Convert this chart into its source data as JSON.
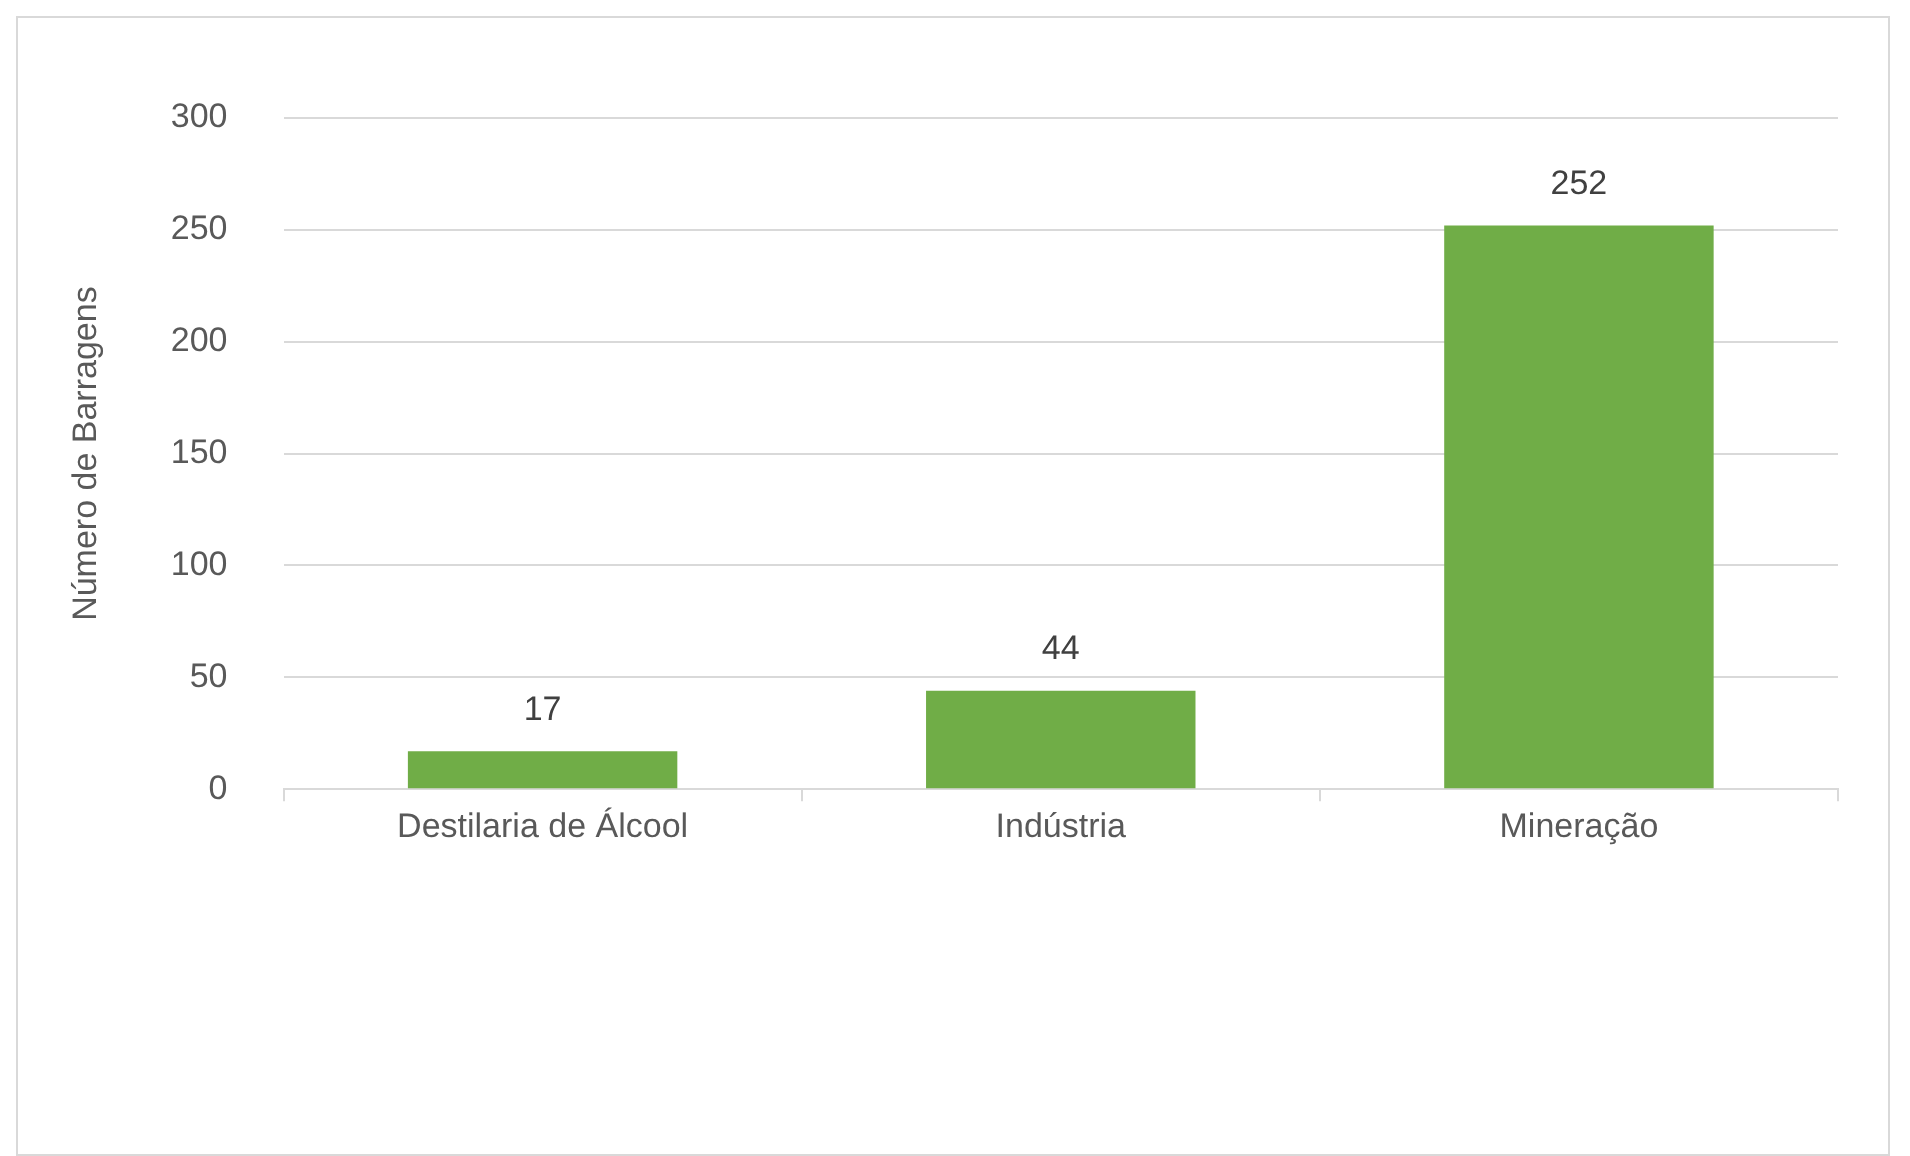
{
  "chart_data": {
    "type": "bar",
    "ylabel": "Número de Barragens",
    "categories": [
      "Destilaria de Álcool",
      "Indústria",
      "Mineração"
    ],
    "values": [
      17,
      44,
      252
    ],
    "color": "#70ad47",
    "ylim": [
      0,
      300
    ],
    "yticks": [
      0,
      50,
      100,
      150,
      200,
      250,
      300
    ],
    "grid": "y",
    "data_labels": true
  }
}
